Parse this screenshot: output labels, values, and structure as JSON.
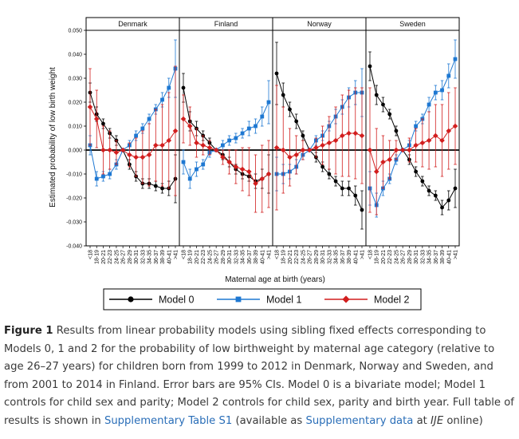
{
  "chart_data": {
    "type": "line",
    "title": "",
    "ylabel": "Estimated probability of low birth weight",
    "xlabel": "Maternal age at birth (years)",
    "ylim": [
      -0.04,
      0.05
    ],
    "yticks": [
      -0.04,
      -0.03,
      -0.02,
      -0.01,
      0.0,
      0.01,
      0.02,
      0.03,
      0.04,
      0.05
    ],
    "ytick_labels": [
      "-0.040",
      "-0.030",
      "-0.020",
      "-0.010",
      "0.000",
      "0.010",
      "0.020",
      "0.030",
      "0.040",
      "0.050"
    ],
    "categories": [
      "<18",
      "18-19",
      "20-21",
      "22-23",
      "24-25",
      "26-27",
      "28-29",
      "30-31",
      "32-33",
      "34-35",
      "36-37",
      "38-39",
      "40-41",
      ">41"
    ],
    "legend": [
      {
        "name": "Model 0",
        "color": "#000000",
        "marker": "circle"
      },
      {
        "name": "Model 1",
        "color": "#1e78d2",
        "marker": "square"
      },
      {
        "name": "Model 2",
        "color": "#d21e1e",
        "marker": "diamond"
      }
    ],
    "panels": [
      {
        "name": "Denmark",
        "series": [
          {
            "name": "Model 0",
            "values": [
              0.024,
              0.015,
              0.011,
              0.007,
              0.004,
              0.0,
              -0.006,
              -0.011,
              -0.014,
              -0.014,
              -0.015,
              -0.016,
              -0.016,
              -0.012
            ],
            "err": [
              0.004,
              0.003,
              0.002,
              0.002,
              0.002,
              0,
              0.002,
              0.002,
              0.002,
              0.002,
              0.002,
              0.002,
              0.003,
              0.01
            ]
          },
          {
            "name": "Model 1",
            "values": [
              0.002,
              -0.012,
              -0.011,
              -0.01,
              -0.006,
              0.0,
              0.002,
              0.006,
              0.009,
              0.013,
              0.017,
              0.021,
              0.026,
              0.034
            ],
            "err": [
              0.004,
              0.003,
              0.002,
              0.002,
              0.002,
              0,
              0.002,
              0.002,
              0.002,
              0.002,
              0.002,
              0.003,
              0.004,
              0.012
            ]
          },
          {
            "name": "Model 2",
            "values": [
              0.018,
              0.013,
              0.0,
              0.0,
              -0.001,
              0.0,
              -0.002,
              -0.003,
              -0.003,
              -0.002,
              0.002,
              0.002,
              0.004,
              0.008
            ],
            "err": [
              0.016,
              0.012,
              0.01,
              0.008,
              0.005,
              0,
              0.005,
              0.008,
              0.011,
              0.013,
              0.015,
              0.017,
              0.02,
              0.027
            ]
          }
        ]
      },
      {
        "name": "Finland",
        "series": [
          {
            "name": "Model 0",
            "values": [
              0.026,
              0.012,
              0.009,
              0.006,
              0.003,
              0.0,
              -0.002,
              -0.005,
              -0.008,
              -0.01,
              -0.011,
              -0.013,
              -0.012,
              -0.01
            ],
            "err": [
              0.006,
              0.004,
              0.003,
              0.002,
              0.002,
              0,
              0.002,
              0.002,
              0.002,
              0.002,
              0.002,
              0.003,
              0.004,
              0.008
            ]
          },
          {
            "name": "Model 1",
            "values": [
              -0.005,
              -0.012,
              -0.008,
              -0.006,
              -0.001,
              0.0,
              0.002,
              0.004,
              0.005,
              0.007,
              0.009,
              0.01,
              0.014,
              0.02
            ],
            "err": [
              0.005,
              0.004,
              0.003,
              0.002,
              0.002,
              0,
              0.002,
              0.002,
              0.002,
              0.002,
              0.003,
              0.003,
              0.004,
              0.009
            ]
          },
          {
            "name": "Model 2",
            "values": [
              0.013,
              0.01,
              0.003,
              0.002,
              0.001,
              0.0,
              -0.003,
              -0.005,
              -0.007,
              -0.008,
              -0.009,
              -0.014,
              -0.012,
              -0.01
            ],
            "err": [
              0.01,
              0.008,
              0.006,
              0.004,
              0.003,
              0,
              0.003,
              0.005,
              0.007,
              0.009,
              0.01,
              0.012,
              0.014,
              0.014
            ]
          }
        ]
      },
      {
        "name": "Norway",
        "series": [
          {
            "name": "Model 0",
            "values": [
              0.032,
              0.023,
              0.017,
              0.012,
              0.006,
              0.0,
              -0.003,
              -0.007,
              -0.01,
              -0.013,
              -0.016,
              -0.016,
              -0.019,
              -0.025
            ],
            "err": [
              0.013,
              0.005,
              0.003,
              0.003,
              0.002,
              0,
              0.002,
              0.002,
              0.002,
              0.002,
              0.003,
              0.003,
              0.004,
              0.008
            ]
          },
          {
            "name": "Model 1",
            "values": [
              -0.01,
              -0.01,
              -0.009,
              -0.007,
              -0.002,
              0.0,
              0.004,
              0.006,
              0.01,
              0.014,
              0.018,
              0.022,
              0.024,
              0.024
            ],
            "err": [
              0.007,
              0.004,
              0.003,
              0.003,
              0.002,
              0,
              0.002,
              0.002,
              0.002,
              0.003,
              0.003,
              0.004,
              0.005,
              0.01
            ]
          },
          {
            "name": "Model 2",
            "values": [
              0.001,
              0.0,
              -0.003,
              -0.002,
              0.0,
              0.0,
              0.001,
              0.002,
              0.003,
              0.004,
              0.006,
              0.007,
              0.007,
              0.006
            ],
            "err": [
              0.026,
              0.018,
              0.012,
              0.008,
              0.004,
              0,
              0.004,
              0.008,
              0.011,
              0.014,
              0.017,
              0.018,
              0.019,
              0.02
            ]
          }
        ]
      },
      {
        "name": "Sweden",
        "series": [
          {
            "name": "Model 0",
            "values": [
              0.035,
              0.023,
              0.019,
              0.015,
              0.008,
              0.0,
              -0.004,
              -0.009,
              -0.013,
              -0.017,
              -0.019,
              -0.024,
              -0.021,
              -0.016
            ],
            "err": [
              0.006,
              0.004,
              0.003,
              0.002,
              0.002,
              0,
              0.002,
              0.002,
              0.002,
              0.002,
              0.002,
              0.003,
              0.004,
              0.008
            ]
          },
          {
            "name": "Model 1",
            "values": [
              -0.016,
              -0.023,
              -0.016,
              -0.012,
              -0.004,
              0.0,
              0.002,
              0.01,
              0.013,
              0.019,
              0.024,
              0.025,
              0.031,
              0.038
            ],
            "err": [
              0.007,
              0.005,
              0.003,
              0.002,
              0.002,
              0,
              0.002,
              0.002,
              0.002,
              0.003,
              0.003,
              0.004,
              0.005,
              0.008
            ]
          },
          {
            "name": "Model 2",
            "values": [
              0.0,
              -0.009,
              -0.005,
              -0.004,
              0.0,
              0.0,
              0.0,
              0.002,
              0.003,
              0.004,
              0.006,
              0.004,
              0.008,
              0.01
            ],
            "err": [
              0.026,
              0.018,
              0.011,
              0.008,
              0.004,
              0,
              0.005,
              0.007,
              0.01,
              0.012,
              0.013,
              0.015,
              0.016,
              0.016
            ]
          }
        ]
      }
    ]
  },
  "caption": {
    "label": "Figure 1",
    "text_1": " Results from linear probability models using sibling fixed effects corresponding to Models 0, 1 and 2 for the probability of low birthweight by maternal age category (relative to age 26–27 years) for children born from 1999 to 2012 in Denmark, Norway and Sweden, and from 2001 to 2014 in Finland. Error bars are 95% CIs. Model 0 is a bivariate model; Model 1 controls for child sex and parity; Model 2 controls for child sex, parity and birth year. Full table of results is shown in ",
    "link_1": "Supplementary Table S1",
    "text_2": " (available as ",
    "link_2": "Supplementary data",
    "text_3": " at ",
    "journal": "IJE",
    "text_4": " online)"
  }
}
